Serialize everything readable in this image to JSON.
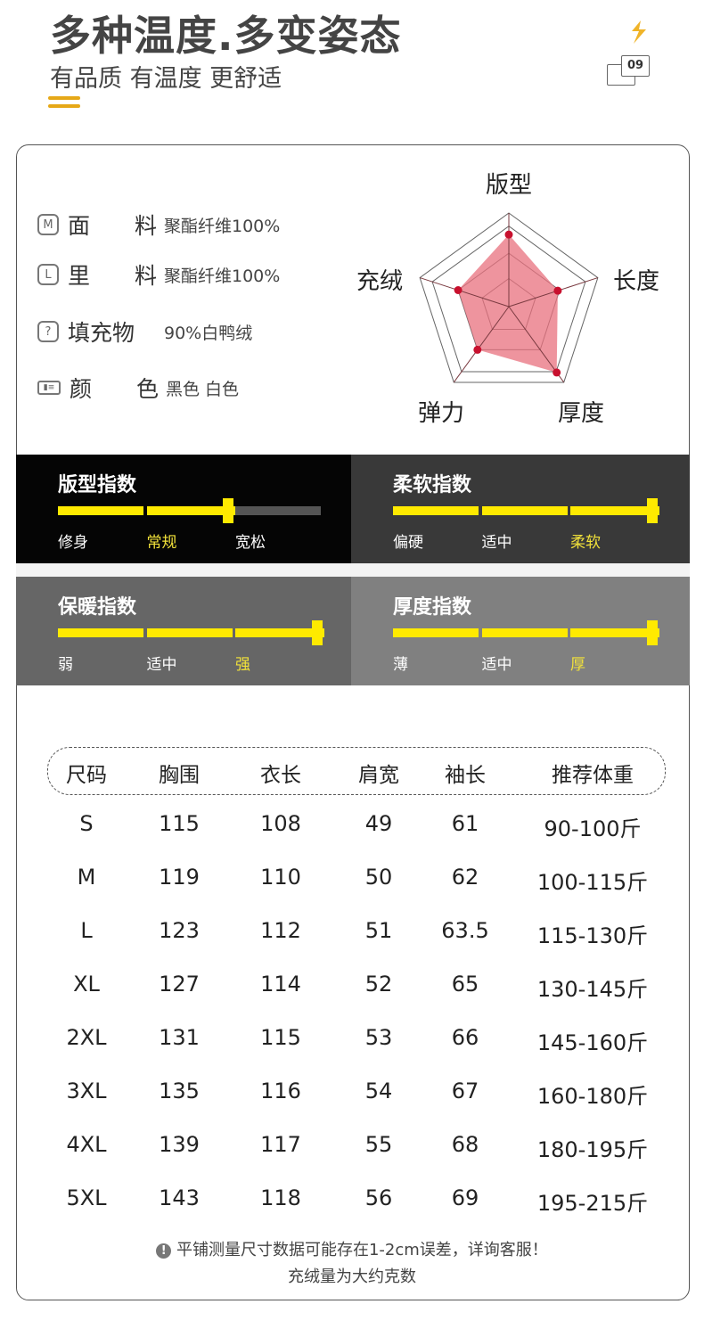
{
  "header": {
    "title": "多种温度.多变姿态",
    "subtitle": "有品质 有温度 更舒适",
    "badge_number": "09",
    "icons": [
      "lightning-icon",
      "page-number-badge"
    ]
  },
  "accent_color": "#e6a817",
  "specs": [
    {
      "icon": "M",
      "label_a": "面",
      "label_b": "料",
      "value": "聚酯纤维100%"
    },
    {
      "icon": "L",
      "label_a": "里",
      "label_b": "料",
      "value": "聚酯纤维100%"
    },
    {
      "icon": "?",
      "label_a": "填充物",
      "label_b": "",
      "value": "90%白鸭绒"
    },
    {
      "icon": "id-card",
      "label_a": "颜",
      "label_b": "色",
      "value": "黑色 白色"
    }
  ],
  "radar": {
    "axes": [
      "版型",
      "长度",
      "厚度",
      "弹力",
      "充绒"
    ],
    "values": [
      77,
      55,
      87,
      57,
      57
    ],
    "max": 100,
    "fill_color": "#e8707e",
    "point_color": "#c8102e"
  },
  "indices": [
    {
      "title": "版型指数",
      "levels": [
        "修身",
        "常规",
        "宽松"
      ],
      "selected": 1,
      "bg": "#050505"
    },
    {
      "title": "柔软指数",
      "levels": [
        "偏硬",
        "适中",
        "柔软"
      ],
      "selected": 2,
      "bg": "#393939"
    },
    {
      "title": "保暖指数",
      "levels": [
        "弱",
        "适中",
        "强"
      ],
      "selected": 2,
      "bg": "#666666"
    },
    {
      "title": "厚度指数",
      "levels": [
        "薄",
        "适中",
        "厚"
      ],
      "selected": 2,
      "bg": "#808080"
    }
  ],
  "bar_color": "#ffea00",
  "size_table": {
    "headers": [
      "尺码",
      "胸围",
      "衣长",
      "肩宽",
      "袖长",
      "推荐体重"
    ],
    "rows": [
      [
        "S",
        "115",
        "108",
        "49",
        "61",
        "90-100斤"
      ],
      [
        "M",
        "119",
        "110",
        "50",
        "62",
        "100-115斤"
      ],
      [
        "L",
        "123",
        "112",
        "51",
        "63.5",
        "115-130斤"
      ],
      [
        "XL",
        "127",
        "114",
        "52",
        "65",
        "130-145斤"
      ],
      [
        "2XL",
        "131",
        "115",
        "53",
        "66",
        "145-160斤"
      ],
      [
        "3XL",
        "135",
        "116",
        "54",
        "67",
        "160-180斤"
      ],
      [
        "4XL",
        "139",
        "117",
        "55",
        "68",
        "180-195斤"
      ],
      [
        "5XL",
        "143",
        "118",
        "56",
        "69",
        "195-215斤"
      ]
    ]
  },
  "notes": [
    "平铺测量尺寸数据可能存在1-2cm误差，详询客服！",
    "充绒量为大约克数"
  ]
}
